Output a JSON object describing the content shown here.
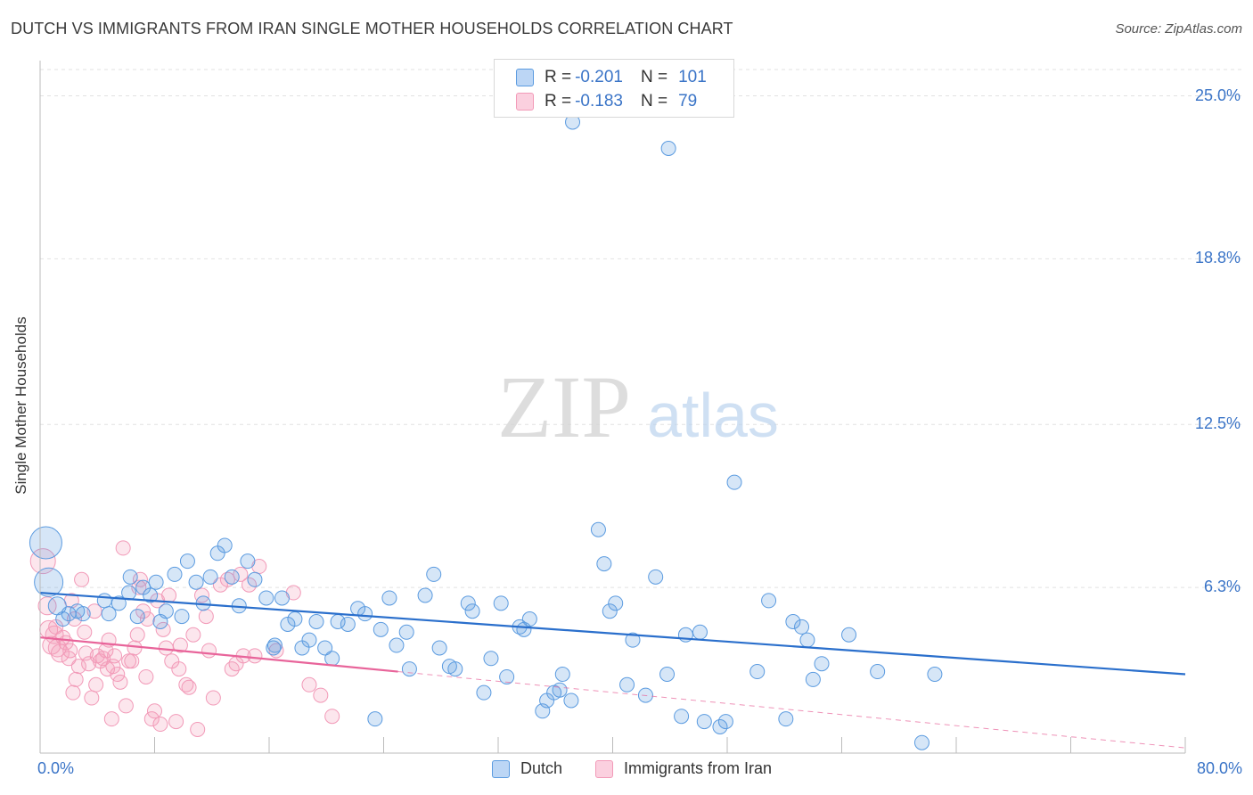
{
  "title": "DUTCH VS IMMIGRANTS FROM IRAN SINGLE MOTHER HOUSEHOLDS CORRELATION CHART",
  "source": "Source: ZipAtlas.com",
  "watermark": {
    "zip": "ZIP",
    "atlas": "atlas"
  },
  "legend": {
    "dutch": {
      "r_label": "R =",
      "r_value": "-0.201",
      "n_label": "N =",
      "n_value": "101"
    },
    "iran": {
      "r_label": "R =",
      "r_value": "-0.183",
      "n_label": "N =",
      "n_value": "79"
    }
  },
  "chart_data": {
    "type": "scatter",
    "title": "DUTCH VS IMMIGRANTS FROM IRAN SINGLE MOTHER HOUSEHOLDS CORRELATION CHART",
    "xlabel": "",
    "ylabel": "Single Mother Households",
    "xlim": [
      0,
      80
    ],
    "ylim": [
      0,
      26
    ],
    "x_tick_labels": [
      "0.0%",
      "80.0%"
    ],
    "y_tick_labels": [
      "6.3%",
      "12.5%",
      "18.8%",
      "25.0%"
    ],
    "y_ticks": [
      6.3,
      12.5,
      18.8,
      25.0
    ],
    "grid": true,
    "legend_position": "top-center",
    "colors": {
      "dutch": "#5b9be0",
      "dutch_line": "#2a6fcc",
      "iran": "#f29ab8",
      "iran_line": "#e8649a",
      "axis_text": "#3a74c7"
    },
    "series": [
      {
        "name": "Dutch",
        "color": "#5b9be0",
        "trend": {
          "x": [
            0,
            80
          ],
          "y": [
            6.1,
            3.0
          ]
        },
        "points": [
          [
            0.4,
            8.0,
            18
          ],
          [
            0.6,
            6.5,
            16
          ],
          [
            1.2,
            5.6,
            10
          ],
          [
            1.6,
            5.1,
            8
          ],
          [
            2.0,
            5.3,
            8
          ],
          [
            2.6,
            5.4,
            8
          ],
          [
            3.0,
            5.3,
            8
          ],
          [
            4.5,
            5.8,
            8
          ],
          [
            4.8,
            5.3,
            8
          ],
          [
            5.5,
            5.7,
            8
          ],
          [
            6.2,
            6.1,
            8
          ],
          [
            6.3,
            6.7,
            8
          ],
          [
            6.8,
            5.2,
            8
          ],
          [
            7.2,
            6.3,
            8
          ],
          [
            7.7,
            6.0,
            8
          ],
          [
            8.1,
            6.5,
            8
          ],
          [
            8.4,
            5.0,
            8
          ],
          [
            8.8,
            5.4,
            8
          ],
          [
            9.4,
            6.8,
            8
          ],
          [
            9.9,
            5.2,
            8
          ],
          [
            10.3,
            7.3,
            8
          ],
          [
            10.9,
            6.5,
            8
          ],
          [
            11.4,
            5.7,
            8
          ],
          [
            11.9,
            6.7,
            8
          ],
          [
            12.4,
            7.6,
            8
          ],
          [
            12.9,
            7.9,
            8
          ],
          [
            13.4,
            6.7,
            8
          ],
          [
            13.9,
            5.6,
            8
          ],
          [
            14.5,
            7.3,
            8
          ],
          [
            15.0,
            6.6,
            8
          ],
          [
            15.8,
            5.9,
            8
          ],
          [
            16.4,
            4.1,
            8
          ],
          [
            16.9,
            5.9,
            8
          ],
          [
            17.3,
            4.9,
            8
          ],
          [
            17.8,
            5.1,
            8
          ],
          [
            18.3,
            4.0,
            8
          ],
          [
            18.8,
            4.3,
            8
          ],
          [
            19.3,
            5.0,
            8
          ],
          [
            19.9,
            4.0,
            8
          ],
          [
            20.4,
            3.6,
            8
          ],
          [
            20.8,
            5.0,
            8
          ],
          [
            21.5,
            4.9,
            8
          ],
          [
            22.2,
            5.5,
            8
          ],
          [
            22.7,
            5.3,
            8
          ],
          [
            23.4,
            1.3,
            8
          ],
          [
            23.8,
            4.7,
            8
          ],
          [
            24.4,
            5.9,
            8
          ],
          [
            24.9,
            4.1,
            8
          ],
          [
            25.6,
            4.6,
            8
          ],
          [
            25.8,
            3.2,
            8
          ],
          [
            26.9,
            6.0,
            8
          ],
          [
            27.5,
            6.8,
            8
          ],
          [
            28.6,
            3.3,
            8
          ],
          [
            29.0,
            3.2,
            8
          ],
          [
            29.9,
            5.7,
            8
          ],
          [
            30.2,
            5.4,
            8
          ],
          [
            31.0,
            2.3,
            8
          ],
          [
            31.5,
            3.6,
            8
          ],
          [
            32.2,
            5.7,
            8
          ],
          [
            32.6,
            2.9,
            8
          ],
          [
            33.5,
            4.8,
            8
          ],
          [
            33.8,
            4.7,
            8
          ],
          [
            34.2,
            5.1,
            8
          ],
          [
            35.1,
            1.6,
            8
          ],
          [
            35.4,
            2.0,
            8
          ],
          [
            35.9,
            2.3,
            8
          ],
          [
            36.3,
            2.4,
            8
          ],
          [
            36.5,
            3.0,
            8
          ],
          [
            37.1,
            2.0,
            8
          ],
          [
            39.0,
            8.5,
            8
          ],
          [
            39.4,
            7.2,
            8
          ],
          [
            39.8,
            5.4,
            8
          ],
          [
            40.2,
            5.7,
            8
          ],
          [
            41.0,
            2.6,
            8
          ],
          [
            41.4,
            4.3,
            8
          ],
          [
            42.3,
            2.2,
            8
          ],
          [
            43.0,
            6.7,
            8
          ],
          [
            43.8,
            3.0,
            8
          ],
          [
            43.9,
            23.0,
            8
          ],
          [
            44.8,
            1.4,
            8
          ],
          [
            45.1,
            4.5,
            8
          ],
          [
            46.1,
            4.6,
            8
          ],
          [
            46.4,
            1.2,
            8
          ],
          [
            47.5,
            1.0,
            8
          ],
          [
            47.9,
            1.2,
            8
          ],
          [
            48.5,
            10.3,
            8
          ],
          [
            50.1,
            3.1,
            8
          ],
          [
            50.9,
            5.8,
            8
          ],
          [
            52.1,
            1.3,
            8
          ],
          [
            52.6,
            5.0,
            8
          ],
          [
            53.2,
            4.8,
            8
          ],
          [
            53.6,
            4.3,
            8
          ],
          [
            54.0,
            2.8,
            8
          ],
          [
            54.6,
            3.4,
            8
          ],
          [
            56.5,
            4.5,
            8
          ],
          [
            58.5,
            3.1,
            8
          ],
          [
            61.6,
            0.4,
            8
          ],
          [
            62.5,
            3.0,
            8
          ],
          [
            37.2,
            24.0,
            8
          ],
          [
            16.3,
            4.0,
            8
          ],
          [
            27.9,
            4.0,
            8
          ]
        ]
      },
      {
        "name": "Immigrants from Iran",
        "color": "#f29ab8",
        "trend": {
          "x": [
            0,
            25
          ],
          "y": [
            4.4,
            3.1
          ]
        },
        "dashed_trend": {
          "x": [
            25,
            80
          ],
          "y": [
            3.1,
            0.2
          ]
        },
        "points": [
          [
            0.2,
            7.3,
            14
          ],
          [
            0.5,
            5.6,
            10
          ],
          [
            0.6,
            4.7,
            10
          ],
          [
            0.8,
            4.1,
            10
          ],
          [
            1.0,
            4.5,
            10
          ],
          [
            1.2,
            4.0,
            10
          ],
          [
            1.4,
            3.8,
            10
          ],
          [
            1.6,
            4.4,
            8
          ],
          [
            1.8,
            4.2,
            8
          ],
          [
            2.0,
            3.6,
            8
          ],
          [
            2.2,
            5.8,
            8
          ],
          [
            2.3,
            2.3,
            8
          ],
          [
            2.5,
            2.8,
            8
          ],
          [
            2.7,
            3.3,
            8
          ],
          [
            2.9,
            6.6,
            8
          ],
          [
            3.1,
            4.6,
            8
          ],
          [
            3.2,
            3.8,
            8
          ],
          [
            3.4,
            3.4,
            8
          ],
          [
            3.6,
            2.1,
            8
          ],
          [
            3.8,
            5.4,
            8
          ],
          [
            4.0,
            3.7,
            8
          ],
          [
            4.2,
            3.5,
            8
          ],
          [
            4.4,
            3.6,
            8
          ],
          [
            4.6,
            3.9,
            8
          ],
          [
            4.8,
            4.3,
            8
          ],
          [
            5.0,
            1.3,
            8
          ],
          [
            5.2,
            3.7,
            8
          ],
          [
            5.4,
            3.0,
            8
          ],
          [
            5.6,
            2.7,
            8
          ],
          [
            5.8,
            7.8,
            8
          ],
          [
            6.0,
            1.8,
            8
          ],
          [
            6.2,
            3.5,
            8
          ],
          [
            6.4,
            3.5,
            8
          ],
          [
            6.6,
            4.0,
            8
          ],
          [
            6.8,
            4.5,
            8
          ],
          [
            7.0,
            6.6,
            8
          ],
          [
            7.2,
            5.4,
            8
          ],
          [
            7.5,
            5.1,
            8
          ],
          [
            7.8,
            1.3,
            8
          ],
          [
            8.0,
            1.6,
            8
          ],
          [
            8.2,
            5.8,
            8
          ],
          [
            8.4,
            1.1,
            8
          ],
          [
            8.6,
            4.7,
            8
          ],
          [
            8.8,
            4.0,
            8
          ],
          [
            9.0,
            6.0,
            8
          ],
          [
            9.2,
            3.5,
            8
          ],
          [
            9.5,
            1.2,
            8
          ],
          [
            9.8,
            4.1,
            8
          ],
          [
            10.2,
            2.6,
            8
          ],
          [
            10.4,
            2.5,
            8
          ],
          [
            10.7,
            4.5,
            8
          ],
          [
            11.0,
            0.9,
            8
          ],
          [
            11.3,
            6.0,
            8
          ],
          [
            11.6,
            5.2,
            8
          ],
          [
            12.1,
            2.1,
            8
          ],
          [
            12.6,
            6.4,
            8
          ],
          [
            13.1,
            6.6,
            8
          ],
          [
            13.4,
            3.2,
            8
          ],
          [
            14.0,
            6.8,
            8
          ],
          [
            14.2,
            3.7,
            8
          ],
          [
            14.6,
            6.4,
            8
          ],
          [
            15.0,
            3.7,
            8
          ],
          [
            15.3,
            7.1,
            8
          ],
          [
            16.5,
            3.9,
            8
          ],
          [
            17.7,
            6.1,
            8
          ],
          [
            18.8,
            2.6,
            8
          ],
          [
            19.6,
            2.2,
            8
          ],
          [
            20.4,
            1.4,
            8
          ],
          [
            2.1,
            3.9,
            8
          ],
          [
            3.9,
            2.6,
            8
          ],
          [
            5.1,
            3.3,
            8
          ],
          [
            6.9,
            6.3,
            8
          ],
          [
            9.7,
            3.2,
            8
          ],
          [
            11.8,
            3.9,
            8
          ],
          [
            13.7,
            3.4,
            8
          ],
          [
            1.1,
            4.8,
            8
          ],
          [
            2.4,
            5.1,
            8
          ],
          [
            4.7,
            3.2,
            8
          ],
          [
            7.4,
            2.9,
            8
          ]
        ]
      }
    ]
  },
  "bottom_legend": {
    "dutch": "Dutch",
    "iran": "Immigrants from Iran"
  }
}
